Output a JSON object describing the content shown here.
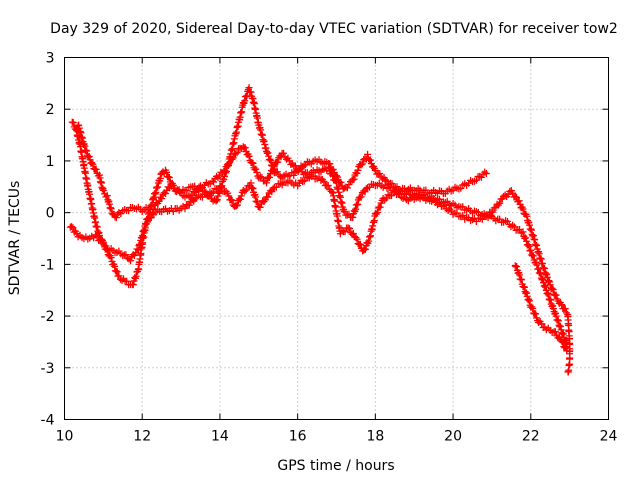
{
  "chart_data": {
    "type": "scatter",
    "title": "Day 329 of 2020, Sidereal Day-to-day VTEC variation (SDTVAR) for receiver tow2",
    "xlabel": "GPS time / hours",
    "ylabel": "SDTVAR / TECUs",
    "xlim": [
      10,
      24
    ],
    "ylim": [
      -4,
      3
    ],
    "xticks": [
      10,
      12,
      14,
      16,
      18,
      20,
      22,
      24
    ],
    "yticks": [
      -4,
      -3,
      -2,
      -1,
      0,
      1,
      2,
      3
    ],
    "grid": true,
    "marker": "+",
    "color": "#ff0000",
    "series": [
      {
        "name": "tow2-track-a",
        "points": [
          [
            10.2,
            1.75
          ],
          [
            10.3,
            1.6
          ],
          [
            10.4,
            1.3
          ],
          [
            10.5,
            0.9
          ],
          [
            10.6,
            0.5
          ],
          [
            10.7,
            0.15
          ],
          [
            10.8,
            -0.2
          ],
          [
            10.9,
            -0.45
          ],
          [
            11.0,
            -0.6
          ],
          [
            11.1,
            -0.7
          ],
          [
            11.3,
            -0.75
          ],
          [
            11.5,
            -0.8
          ],
          [
            11.7,
            -0.9
          ],
          [
            11.9,
            -0.7
          ],
          [
            12.1,
            -0.2
          ],
          [
            12.3,
            0.3
          ],
          [
            12.5,
            0.75
          ],
          [
            12.6,
            0.8
          ],
          [
            12.8,
            0.5
          ],
          [
            13.0,
            0.35
          ],
          [
            13.2,
            0.3
          ],
          [
            13.5,
            0.5
          ],
          [
            13.8,
            0.6
          ],
          [
            14.1,
            0.8
          ],
          [
            14.4,
            1.15
          ],
          [
            14.6,
            1.3
          ],
          [
            14.8,
            1.0
          ],
          [
            15.0,
            0.7
          ],
          [
            15.2,
            0.6
          ],
          [
            15.4,
            0.9
          ],
          [
            15.6,
            1.15
          ],
          [
            15.9,
            0.9
          ],
          [
            16.2,
            0.75
          ],
          [
            16.5,
            0.8
          ],
          [
            16.8,
            0.85
          ],
          [
            17.0,
            0.55
          ],
          [
            17.2,
            0.0
          ],
          [
            17.4,
            -0.1
          ],
          [
            17.6,
            0.3
          ],
          [
            17.8,
            0.5
          ],
          [
            18.0,
            0.55
          ],
          [
            18.3,
            0.5
          ],
          [
            18.6,
            0.4
          ],
          [
            19.0,
            0.35
          ],
          [
            19.4,
            0.3
          ],
          [
            19.8,
            0.2
          ],
          [
            20.2,
            0.1
          ],
          [
            20.6,
            0.0
          ],
          [
            21.0,
            -0.1
          ],
          [
            21.4,
            -0.2
          ],
          [
            21.8,
            -0.4
          ],
          [
            22.0,
            -0.75
          ],
          [
            22.2,
            -1.1
          ],
          [
            22.4,
            -1.5
          ],
          [
            22.6,
            -1.9
          ],
          [
            22.8,
            -2.3
          ],
          [
            22.95,
            -2.6
          ]
        ]
      },
      {
        "name": "tow2-track-b",
        "points": [
          [
            10.35,
            1.7
          ],
          [
            10.45,
            1.45
          ],
          [
            10.55,
            1.2
          ],
          [
            10.7,
            0.95
          ],
          [
            10.9,
            0.7
          ],
          [
            11.0,
            0.4
          ],
          [
            11.1,
            0.3
          ],
          [
            11.2,
            0.05
          ],
          [
            11.3,
            -0.1
          ],
          [
            11.4,
            0.0
          ],
          [
            11.6,
            0.05
          ],
          [
            11.8,
            0.1
          ],
          [
            12.0,
            0.05
          ],
          [
            12.3,
            0.1
          ],
          [
            12.5,
            0.3
          ],
          [
            12.7,
            0.5
          ],
          [
            13.0,
            0.4
          ],
          [
            13.3,
            0.5
          ],
          [
            13.6,
            0.4
          ],
          [
            13.9,
            0.2
          ],
          [
            14.2,
            0.9
          ],
          [
            14.4,
            1.5
          ],
          [
            14.6,
            2.1
          ],
          [
            14.75,
            2.4
          ],
          [
            14.85,
            2.2
          ],
          [
            15.0,
            1.7
          ],
          [
            15.2,
            1.2
          ],
          [
            15.4,
            0.8
          ],
          [
            15.6,
            0.7
          ],
          [
            15.9,
            0.75
          ],
          [
            16.2,
            0.95
          ],
          [
            16.5,
            1.0
          ],
          [
            16.8,
            0.95
          ],
          [
            17.0,
            0.7
          ],
          [
            17.2,
            0.45
          ],
          [
            17.4,
            0.6
          ],
          [
            17.6,
            0.9
          ],
          [
            17.8,
            1.1
          ],
          [
            18.0,
            0.8
          ],
          [
            18.3,
            0.6
          ],
          [
            18.6,
            0.45
          ],
          [
            19.0,
            0.45
          ],
          [
            19.4,
            0.4
          ],
          [
            19.8,
            0.4
          ],
          [
            20.2,
            0.5
          ],
          [
            20.6,
            0.65
          ],
          [
            20.9,
            0.8
          ]
        ]
      },
      {
        "name": "tow2-track-c",
        "points": [
          [
            10.15,
            -0.25
          ],
          [
            10.25,
            -0.35
          ],
          [
            10.35,
            -0.45
          ],
          [
            10.5,
            -0.5
          ],
          [
            10.65,
            -0.5
          ],
          [
            10.8,
            -0.45
          ],
          [
            11.0,
            -0.6
          ],
          [
            11.2,
            -0.9
          ],
          [
            11.4,
            -1.25
          ],
          [
            11.6,
            -1.35
          ],
          [
            11.75,
            -1.4
          ],
          [
            11.9,
            -1.1
          ],
          [
            12.0,
            -0.6
          ],
          [
            12.1,
            -0.2
          ],
          [
            12.3,
            0.0
          ],
          [
            12.5,
            0.05
          ],
          [
            12.8,
            0.05
          ],
          [
            13.1,
            0.1
          ],
          [
            13.4,
            0.3
          ],
          [
            13.7,
            0.35
          ],
          [
            14.0,
            0.5
          ],
          [
            14.2,
            0.35
          ],
          [
            14.4,
            0.1
          ],
          [
            14.6,
            0.4
          ],
          [
            14.8,
            0.55
          ],
          [
            15.0,
            0.1
          ],
          [
            15.2,
            0.3
          ],
          [
            15.4,
            0.5
          ],
          [
            15.7,
            0.6
          ],
          [
            16.0,
            0.55
          ],
          [
            16.3,
            0.7
          ],
          [
            16.6,
            0.65
          ],
          [
            16.9,
            0.4
          ],
          [
            17.1,
            -0.4
          ],
          [
            17.3,
            -0.3
          ],
          [
            17.5,
            -0.5
          ],
          [
            17.7,
            -0.75
          ],
          [
            17.85,
            -0.5
          ],
          [
            18.0,
            -0.05
          ],
          [
            18.2,
            0.25
          ],
          [
            18.5,
            0.4
          ],
          [
            18.8,
            0.25
          ],
          [
            19.1,
            0.3
          ],
          [
            19.4,
            0.25
          ],
          [
            19.7,
            0.15
          ],
          [
            20.0,
            0.0
          ],
          [
            20.3,
            -0.1
          ],
          [
            20.6,
            -0.15
          ],
          [
            20.9,
            -0.05
          ],
          [
            21.1,
            0.1
          ],
          [
            21.3,
            0.3
          ],
          [
            21.5,
            0.4
          ],
          [
            21.7,
            0.2
          ],
          [
            21.9,
            -0.1
          ],
          [
            22.1,
            -0.55
          ],
          [
            22.3,
            -1.0
          ],
          [
            22.5,
            -1.4
          ],
          [
            22.7,
            -1.7
          ],
          [
            22.95,
            -1.95
          ],
          [
            23.0,
            -2.5
          ],
          [
            23.0,
            -2.9
          ],
          [
            22.95,
            -3.15
          ]
        ]
      },
      {
        "name": "tow2-track-d",
        "points": [
          [
            21.6,
            -1.0
          ],
          [
            21.8,
            -1.4
          ],
          [
            22.0,
            -1.8
          ],
          [
            22.2,
            -2.1
          ],
          [
            22.4,
            -2.25
          ],
          [
            22.6,
            -2.3
          ],
          [
            22.8,
            -2.5
          ],
          [
            22.95,
            -2.7
          ]
        ]
      }
    ]
  }
}
